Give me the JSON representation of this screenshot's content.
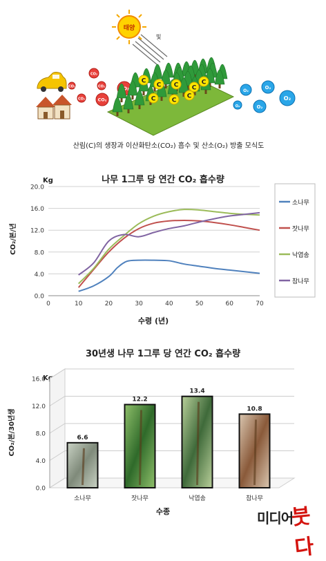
{
  "diagram": {
    "sun_label": "태양",
    "light_label": "빛",
    "caption": "산림(C)의 생장과 이산화탄소(CO₂) 흡수 및 산소(O₂) 방출 모식도",
    "co2_label": "CO₂",
    "o2_label": "O₂",
    "carbon_label": "C"
  },
  "logo": {
    "part1": "미디어",
    "part2": "붓다"
  },
  "chart_data": [
    {
      "type": "line",
      "title": "나무 1그루 당 연간 CO₂ 흡수량",
      "unit": "Kg",
      "xlabel": "수령 (년)",
      "ylabel": "CO₂/본/년",
      "xlim": [
        0,
        70
      ],
      "ylim": [
        0,
        20
      ],
      "x_ticks": [
        "0",
        "10",
        "20",
        "30",
        "40",
        "50",
        "60",
        "70"
      ],
      "y_ticks": [
        "0.0",
        "4.0",
        "8.0",
        "12.0",
        "16.0",
        "20.0"
      ],
      "grid": "horizontal",
      "legend_position": "right",
      "series": [
        {
          "name": "소나무",
          "color": "#4f81bd",
          "points": [
            [
              10,
              0.8
            ],
            [
              15,
              1.8
            ],
            [
              20,
              3.5
            ],
            [
              23,
              5.2
            ],
            [
              26,
              6.3
            ],
            [
              30,
              6.5
            ],
            [
              35,
              6.5
            ],
            [
              40,
              6.4
            ],
            [
              45,
              5.8
            ],
            [
              50,
              5.4
            ],
            [
              55,
              5.0
            ],
            [
              60,
              4.7
            ],
            [
              65,
              4.4
            ],
            [
              70,
              4.1
            ]
          ]
        },
        {
          "name": "잣나무",
          "color": "#c0504d",
          "points": [
            [
              10,
              1.5
            ],
            [
              15,
              4.8
            ],
            [
              20,
              8.0
            ],
            [
              25,
              10.5
            ],
            [
              30,
              12.3
            ],
            [
              35,
              13.3
            ],
            [
              40,
              13.7
            ],
            [
              45,
              13.8
            ],
            [
              50,
              13.7
            ],
            [
              55,
              13.4
            ],
            [
              60,
              13.0
            ],
            [
              65,
              12.5
            ],
            [
              70,
              12.0
            ]
          ]
        },
        {
          "name": "낙엽송",
          "color": "#9bbb59",
          "points": [
            [
              10,
              2.2
            ],
            [
              15,
              5.0
            ],
            [
              20,
              8.5
            ],
            [
              25,
              11.0
            ],
            [
              30,
              13.2
            ],
            [
              35,
              14.6
            ],
            [
              40,
              15.4
            ],
            [
              45,
              15.8
            ],
            [
              50,
              15.7
            ],
            [
              55,
              15.4
            ],
            [
              60,
              15.1
            ],
            [
              65,
              14.9
            ],
            [
              70,
              14.8
            ]
          ]
        },
        {
          "name": "참나무",
          "color": "#8064a2",
          "points": [
            [
              10,
              3.8
            ],
            [
              15,
              6.0
            ],
            [
              20,
              10.0
            ],
            [
              25,
              11.2
            ],
            [
              30,
              10.8
            ],
            [
              35,
              11.6
            ],
            [
              40,
              12.3
            ],
            [
              45,
              12.8
            ],
            [
              50,
              13.5
            ],
            [
              55,
              14.1
            ],
            [
              60,
              14.6
            ],
            [
              65,
              14.9
            ],
            [
              70,
              15.2
            ]
          ]
        }
      ]
    },
    {
      "type": "bar",
      "title": "30년생 나무 1그루 당 연간 CO₂ 흡수량",
      "unit": "Kg",
      "xlabel": "수종",
      "ylabel": "CO₂/본/30년생",
      "ylim": [
        0,
        16
      ],
      "y_ticks": [
        "0.0",
        "4.0",
        "8.0",
        "12.0",
        "16.0"
      ],
      "grid": "horizontal",
      "categories": [
        "소나무",
        "잣나무",
        "낙엽송",
        "참나무"
      ],
      "values": [
        6.6,
        12.2,
        13.4,
        10.8
      ],
      "value_labels": [
        "6.6",
        "12.2",
        "13.4",
        "10.8"
      ]
    }
  ]
}
